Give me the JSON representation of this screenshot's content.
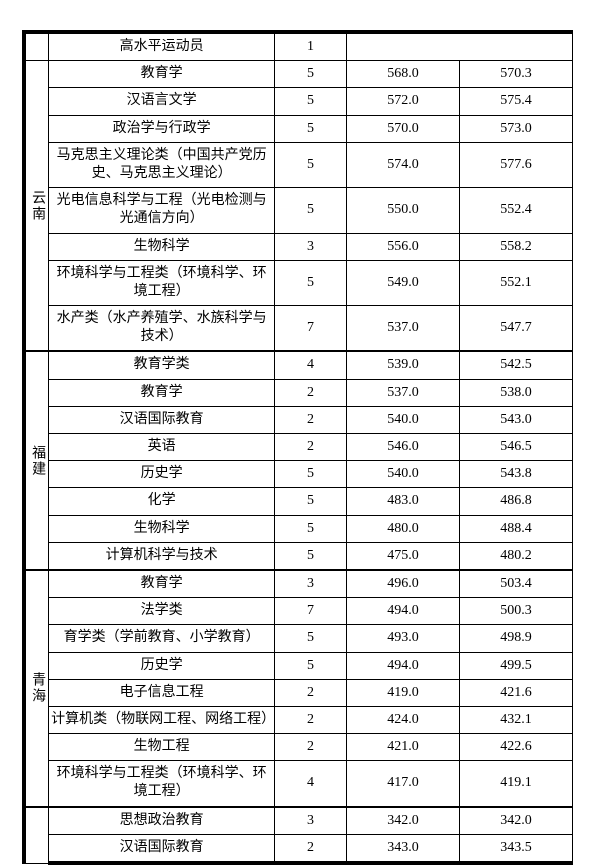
{
  "header_row": {
    "major": "高水平运动员",
    "count": "1"
  },
  "sections": [
    {
      "region": "云南",
      "rows": [
        {
          "major": "教育学",
          "count": "5",
          "s1": "568.0",
          "s2": "570.3"
        },
        {
          "major": "汉语言文学",
          "count": "5",
          "s1": "572.0",
          "s2": "575.4"
        },
        {
          "major": "政治学与行政学",
          "count": "5",
          "s1": "570.0",
          "s2": "573.0"
        },
        {
          "major": "马克思主义理论类（中国共产党历史、马克思主义理论）",
          "count": "5",
          "s1": "574.0",
          "s2": "577.6"
        },
        {
          "major": "光电信息科学与工程（光电检测与光通信方向）",
          "count": "5",
          "s1": "550.0",
          "s2": "552.4"
        },
        {
          "major": "生物科学",
          "count": "3",
          "s1": "556.0",
          "s2": "558.2"
        },
        {
          "major": "环境科学与工程类（环境科学、环境工程）",
          "count": "5",
          "s1": "549.0",
          "s2": "552.1"
        },
        {
          "major": "水产类（水产养殖学、水族科学与技术）",
          "count": "7",
          "s1": "537.0",
          "s2": "547.7"
        }
      ]
    },
    {
      "region": "福建",
      "rows": [
        {
          "major": "教育学类",
          "count": "4",
          "s1": "539.0",
          "s2": "542.5"
        },
        {
          "major": "教育学",
          "count": "2",
          "s1": "537.0",
          "s2": "538.0"
        },
        {
          "major": "汉语国际教育",
          "count": "2",
          "s1": "540.0",
          "s2": "543.0"
        },
        {
          "major": "英语",
          "count": "2",
          "s1": "546.0",
          "s2": "546.5"
        },
        {
          "major": "历史学",
          "count": "5",
          "s1": "540.0",
          "s2": "543.8"
        },
        {
          "major": "化学",
          "count": "5",
          "s1": "483.0",
          "s2": "486.8"
        },
        {
          "major": "生物科学",
          "count": "5",
          "s1": "480.0",
          "s2": "488.4"
        },
        {
          "major": "计算机科学与技术",
          "count": "5",
          "s1": "475.0",
          "s2": "480.2"
        }
      ]
    },
    {
      "region": "青海",
      "rows": [
        {
          "major": "教育学",
          "count": "3",
          "s1": "496.0",
          "s2": "503.4"
        },
        {
          "major": "法学类",
          "count": "7",
          "s1": "494.0",
          "s2": "500.3"
        },
        {
          "major": "育学类（学前教育、小学教育）",
          "count": "5",
          "s1": "493.0",
          "s2": "498.9"
        },
        {
          "major": "历史学",
          "count": "5",
          "s1": "494.0",
          "s2": "499.5"
        },
        {
          "major": "电子信息工程",
          "count": "2",
          "s1": "419.0",
          "s2": "421.6"
        },
        {
          "major": "计算机类（物联网工程、网络工程）",
          "count": "2",
          "s1": "424.0",
          "s2": "432.1"
        },
        {
          "major": "生物工程",
          "count": "2",
          "s1": "421.0",
          "s2": "422.6"
        },
        {
          "major": "环境科学与工程类（环境科学、环境工程）",
          "count": "4",
          "s1": "417.0",
          "s2": "419.1"
        }
      ]
    },
    {
      "region": "",
      "rows": [
        {
          "major": "思想政治教育",
          "count": "3",
          "s1": "342.0",
          "s2": "342.0"
        },
        {
          "major": "汉语国际教育",
          "count": "2",
          "s1": "343.0",
          "s2": "343.5"
        }
      ]
    }
  ]
}
